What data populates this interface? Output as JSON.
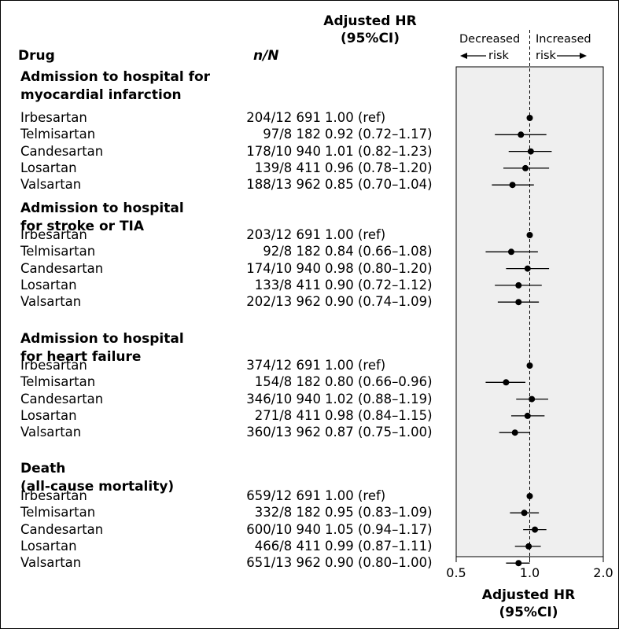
{
  "header": {
    "drug": "Drug",
    "nn": "n/N",
    "hr_line1": "Adjusted HR",
    "hr_line2": "(95%CI)"
  },
  "legend": {
    "decreased": "Decreased",
    "increased": "Increased",
    "risk_left": "risk",
    "risk_right": "risk"
  },
  "sections": [
    {
      "title": "Admission to hospital for\nmyocardial infarction",
      "rows": [
        {
          "drug": "Irbesartan",
          "nn": "204/12 691",
          "hr_text": "1.00 (ref)",
          "hr": 1.0,
          "lo": null,
          "hi": null
        },
        {
          "drug": "Telmisartan",
          "nn": "97/8 182",
          "hr_text": "0.92 (0.72–1.17)",
          "hr": 0.92,
          "lo": 0.72,
          "hi": 1.17
        },
        {
          "drug": "Candesartan",
          "nn": "178/10 940",
          "hr_text": "1.01 (0.82–1.23)",
          "hr": 1.01,
          "lo": 0.82,
          "hi": 1.23
        },
        {
          "drug": "Losartan",
          "nn": "139/8 411",
          "hr_text": "0.96 (0.78–1.20)",
          "hr": 0.96,
          "lo": 0.78,
          "hi": 1.2
        },
        {
          "drug": "Valsartan",
          "nn": "188/13 962",
          "hr_text": "0.85 (0.70–1.04)",
          "hr": 0.85,
          "lo": 0.7,
          "hi": 1.04
        }
      ]
    },
    {
      "title": "Admission to hospital\nfor stroke or TIA",
      "rows": [
        {
          "drug": "Irbesartan",
          "nn": "203/12 691",
          "hr_text": "1.00 (ref)",
          "hr": 1.0,
          "lo": null,
          "hi": null
        },
        {
          "drug": "Telmisartan",
          "nn": "92/8 182",
          "hr_text": "0.84 (0.66–1.08)",
          "hr": 0.84,
          "lo": 0.66,
          "hi": 1.08
        },
        {
          "drug": "Candesartan",
          "nn": "174/10 940",
          "hr_text": "0.98 (0.80–1.20)",
          "hr": 0.98,
          "lo": 0.8,
          "hi": 1.2
        },
        {
          "drug": "Losartan",
          "nn": "133/8 411",
          "hr_text": "0.90 (0.72–1.12)",
          "hr": 0.9,
          "lo": 0.72,
          "hi": 1.12
        },
        {
          "drug": "Valsartan",
          "nn": "202/13 962",
          "hr_text": "0.90 (0.74–1.09)",
          "hr": 0.9,
          "lo": 0.74,
          "hi": 1.09
        }
      ]
    },
    {
      "title": "Admission to hospital\nfor heart failure",
      "rows": [
        {
          "drug": "Irbesartan",
          "nn": "374/12 691",
          "hr_text": "1.00 (ref)",
          "hr": 1.0,
          "lo": null,
          "hi": null
        },
        {
          "drug": "Telmisartan",
          "nn": "154/8 182",
          "hr_text": "0.80 (0.66–0.96)",
          "hr": 0.8,
          "lo": 0.66,
          "hi": 0.96
        },
        {
          "drug": "Candesartan",
          "nn": "346/10 940",
          "hr_text": "1.02 (0.88–1.19)",
          "hr": 1.02,
          "lo": 0.88,
          "hi": 1.19
        },
        {
          "drug": "Losartan",
          "nn": "271/8 411",
          "hr_text": "0.98 (0.84–1.15)",
          "hr": 0.98,
          "lo": 0.84,
          "hi": 1.15
        },
        {
          "drug": "Valsartan",
          "nn": "360/13 962",
          "hr_text": "0.87 (0.75–1.00)",
          "hr": 0.87,
          "lo": 0.75,
          "hi": 1.0
        }
      ]
    },
    {
      "title": "Death\n(all-cause mortality)",
      "rows": [
        {
          "drug": "Irbesartan",
          "nn": "659/12 691",
          "hr_text": "1.00 (ref)",
          "hr": 1.0,
          "lo": null,
          "hi": null
        },
        {
          "drug": "Telmisartan",
          "nn": "332/8 182",
          "hr_text": "0.95 (0.83–1.09)",
          "hr": 0.95,
          "lo": 0.83,
          "hi": 1.09
        },
        {
          "drug": "Candesartan",
          "nn": "600/10 940",
          "hr_text": "1.05 (0.94–1.17)",
          "hr": 1.05,
          "lo": 0.94,
          "hi": 1.17
        },
        {
          "drug": "Losartan",
          "nn": "466/8 411",
          "hr_text": "0.99 (0.87–1.11)",
          "hr": 0.99,
          "lo": 0.87,
          "hi": 1.11
        },
        {
          "drug": "Valsartan",
          "nn": "651/13 962",
          "hr_text": "0.90 (0.80–1.00)",
          "hr": 0.9,
          "lo": 0.8,
          "hi": 1.0
        }
      ]
    }
  ],
  "chart_data": {
    "type": "forest",
    "xscale": "log",
    "xlim": [
      0.5,
      2.0
    ],
    "xticks": [
      "0.5",
      "1.0",
      "2.0"
    ],
    "reference_line": 1.0,
    "xlabel_line1": "Adjusted HR",
    "xlabel_line2": "(95%CI)",
    "panel_color": "#efefef",
    "marker_color": "#000000"
  }
}
